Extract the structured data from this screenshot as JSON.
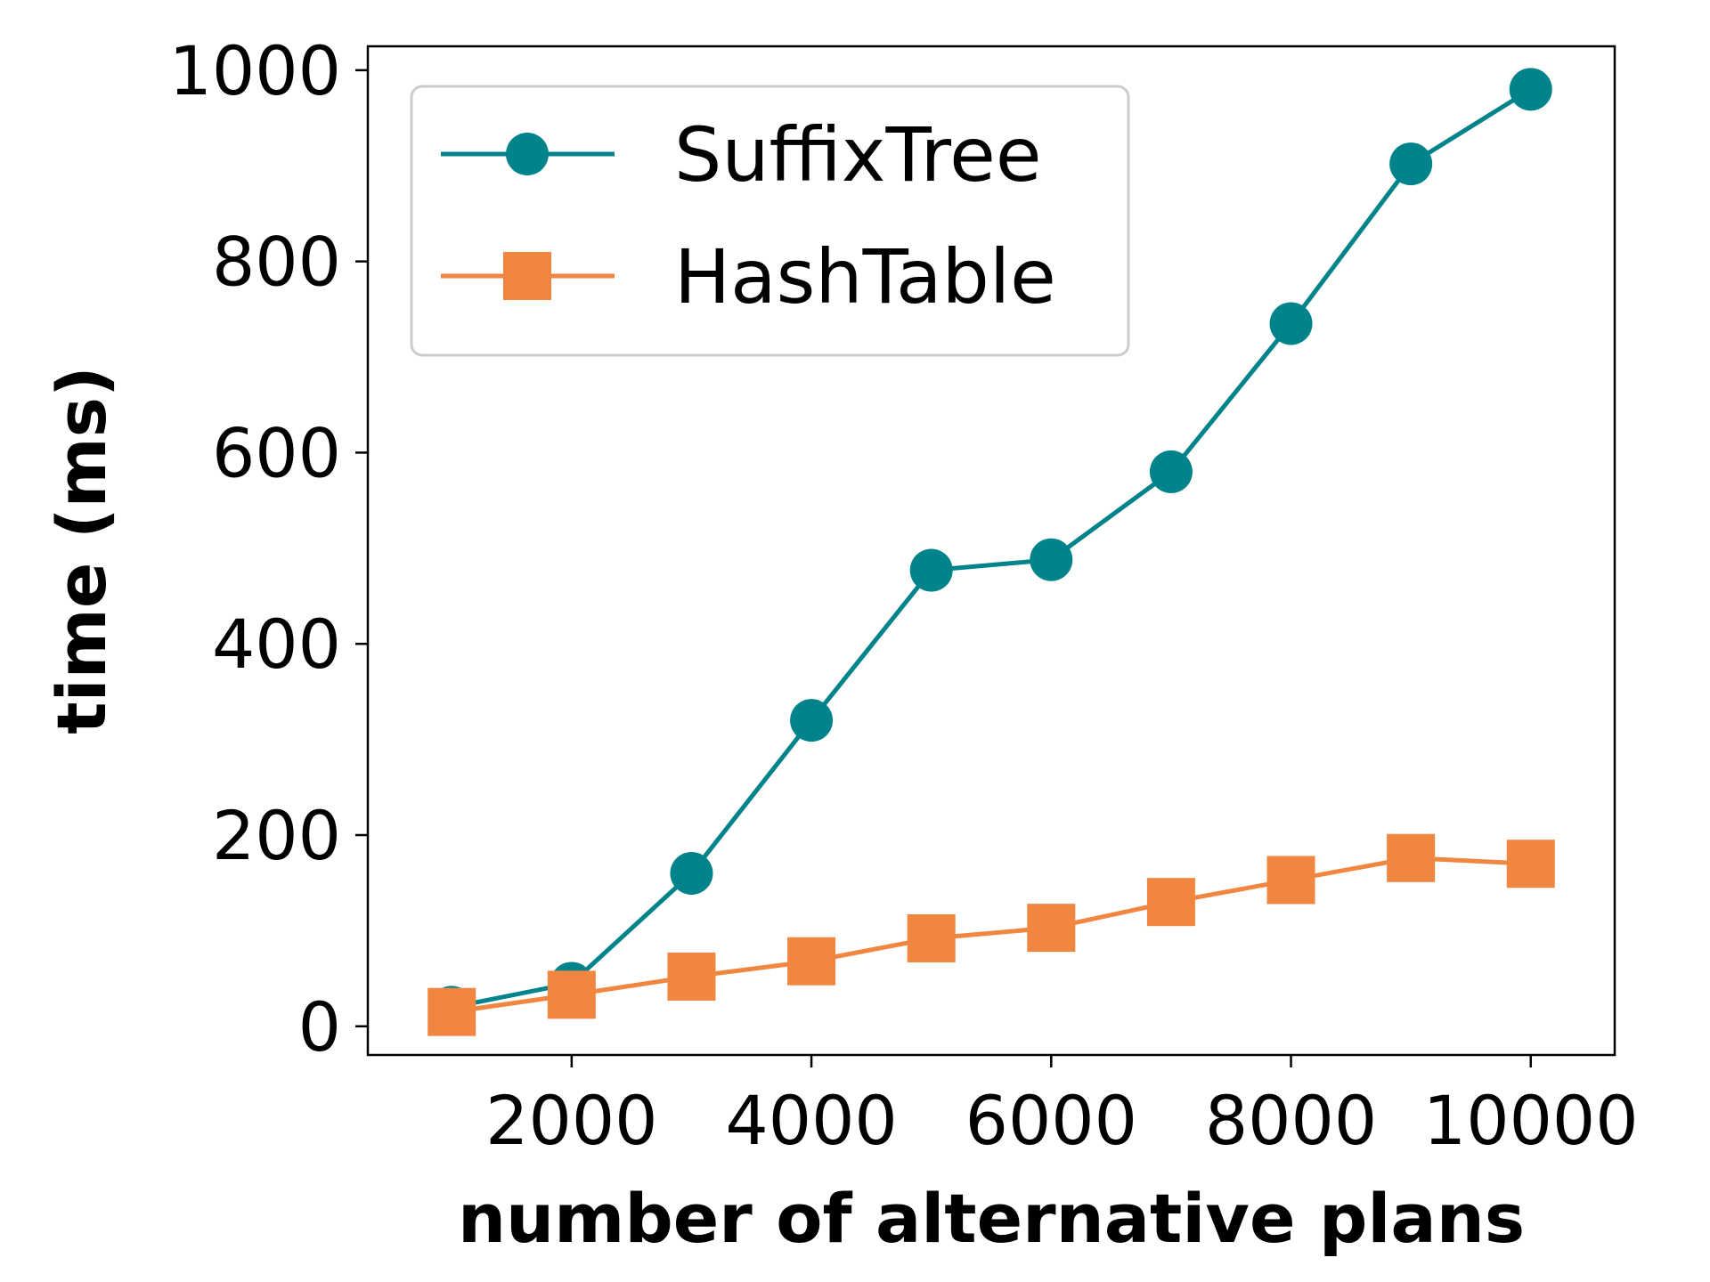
{
  "chart_data": {
    "type": "line",
    "xlabel": "number of alternative plans",
    "ylabel": "time (ms)",
    "xlim": [
      300,
      10700
    ],
    "ylim": [
      -30,
      1025
    ],
    "xticks": [
      2000,
      4000,
      6000,
      8000,
      10000
    ],
    "yticks": [
      0,
      200,
      400,
      600,
      800,
      1000
    ],
    "grid": false,
    "legend_position": "top-left",
    "x": [
      1000,
      2000,
      3000,
      4000,
      5000,
      6000,
      7000,
      8000,
      9000,
      10000
    ],
    "series": [
      {
        "name": "SuffixTree",
        "marker": "circle",
        "color": "#00838A",
        "values": [
          20,
          45,
          160,
          320,
          477,
          488,
          580,
          735,
          902,
          980
        ]
      },
      {
        "name": "HashTable",
        "marker": "square",
        "color": "#F0863F",
        "values": [
          15,
          33,
          52,
          68,
          92,
          103,
          130,
          153,
          176,
          170
        ]
      }
    ]
  }
}
